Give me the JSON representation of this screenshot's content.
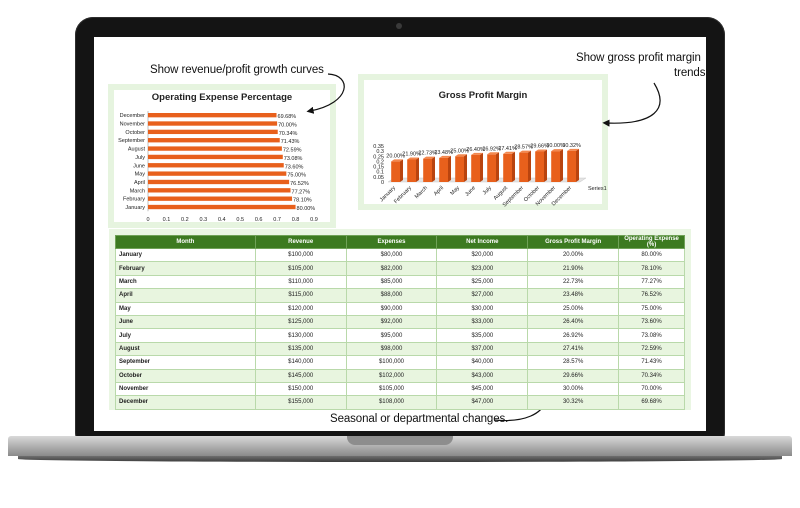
{
  "annotations": {
    "top_left": "Show revenue/profit growth curves",
    "top_right_line1": "Show gross profit margin",
    "top_right_line2": "trends",
    "bottom": "Seasonal or departmental changes."
  },
  "chart_data": [
    {
      "type": "bar",
      "orientation": "horizontal",
      "title": "Operating Expense Percentage",
      "categories": [
        "January",
        "February",
        "March",
        "April",
        "May",
        "June",
        "July",
        "August",
        "September",
        "October",
        "November",
        "December"
      ],
      "values": [
        0.8,
        0.781,
        0.7727,
        0.7652,
        0.75,
        0.736,
        0.7308,
        0.7259,
        0.7143,
        0.7034,
        0.7,
        0.6968
      ],
      "data_labels": [
        "80.00%",
        "78.10%",
        "77.27%",
        "76.52%",
        "75.00%",
        "73.60%",
        "73.08%",
        "72.59%",
        "71.43%",
        "70.34%",
        "70.00%",
        "69.68%"
      ],
      "xlim": [
        0,
        0.9
      ],
      "xticks": [
        "0",
        "0.1",
        "0.2",
        "0.3",
        "0.4",
        "0.5",
        "0.6",
        "0.7",
        "0.8",
        "0.9"
      ],
      "color": "#e8601c",
      "grid": false
    },
    {
      "type": "bar",
      "style": "3d-column",
      "title": "Gross Profit Margin",
      "categories": [
        "January",
        "February",
        "March",
        "April",
        "May",
        "June",
        "July",
        "August",
        "September",
        "October",
        "November",
        "December"
      ],
      "series": [
        {
          "name": "Series1",
          "values": [
            0.2,
            0.219,
            0.2273,
            0.2348,
            0.25,
            0.264,
            0.2692,
            0.2741,
            0.2857,
            0.2966,
            0.3,
            0.3032
          ]
        }
      ],
      "data_labels": [
        "20.00%",
        "21.90%",
        "22.73%",
        "23.48%",
        "25.00%",
        "26.40%",
        "26.92%",
        "27.41%",
        "28.57%",
        "29.66%",
        "30.00%",
        "30.32%"
      ],
      "ylim": [
        0,
        0.35
      ],
      "yticks": [
        "0",
        "0.05",
        "0.1",
        "0.15",
        "0.2",
        "0.25",
        "0.3",
        "0.35"
      ],
      "legend": "right",
      "color": "#e8601c",
      "grid": false
    }
  ],
  "table": {
    "columns": [
      "Month",
      "Revenue",
      "Expenses",
      "Net Income",
      "Gross Profit Margin",
      "Operating Expense (%)"
    ],
    "rows": [
      [
        "January",
        "$100,000",
        "$80,000",
        "$20,000",
        "20.00%",
        "80.00%"
      ],
      [
        "February",
        "$105,000",
        "$82,000",
        "$23,000",
        "21.90%",
        "78.10%"
      ],
      [
        "March",
        "$110,000",
        "$85,000",
        "$25,000",
        "22.73%",
        "77.27%"
      ],
      [
        "April",
        "$115,000",
        "$88,000",
        "$27,000",
        "23.48%",
        "76.52%"
      ],
      [
        "May",
        "$120,000",
        "$90,000",
        "$30,000",
        "25.00%",
        "75.00%"
      ],
      [
        "June",
        "$125,000",
        "$92,000",
        "$33,000",
        "26.40%",
        "73.60%"
      ],
      [
        "July",
        "$130,000",
        "$95,000",
        "$35,000",
        "26.92%",
        "73.08%"
      ],
      [
        "August",
        "$135,000",
        "$98,000",
        "$37,000",
        "27.41%",
        "72.59%"
      ],
      [
        "September",
        "$140,000",
        "$100,000",
        "$40,000",
        "28.57%",
        "71.43%"
      ],
      [
        "October",
        "$145,000",
        "$102,000",
        "$43,000",
        "29.66%",
        "70.34%"
      ],
      [
        "November",
        "$150,000",
        "$105,000",
        "$45,000",
        "30.00%",
        "70.00%"
      ],
      [
        "December",
        "$155,000",
        "$108,000",
        "$47,000",
        "30.32%",
        "69.68%"
      ]
    ]
  },
  "colors": {
    "header_green": "#3c7a20",
    "row_alt": "#e8f5df",
    "bar_orange": "#e8601c",
    "panel_border": "#e6f4df"
  }
}
